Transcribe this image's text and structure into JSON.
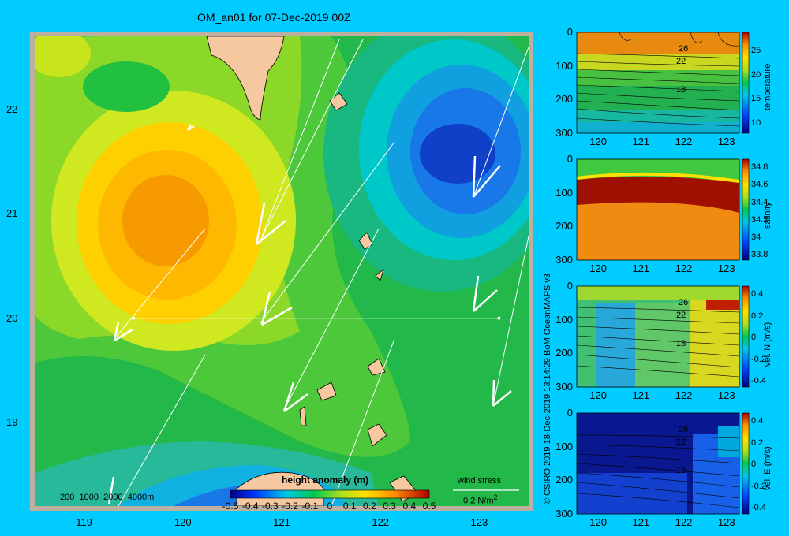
{
  "chart_data": [
    {
      "type": "heatmap",
      "title": "OM_an01 for 07-Dec-2019 00Z",
      "xlim": [
        118.5,
        123.5
      ],
      "ylim": [
        18.2,
        22.7
      ],
      "x_ticks": [
        "119",
        "120",
        "121",
        "122",
        "123"
      ],
      "y_ticks": [
        "19",
        "20",
        "21",
        "22"
      ],
      "colorbar": {
        "label": "height anomaly  (m)",
        "ticks": [
          "-0.5",
          "-0.4",
          "-0.3",
          "-0.2",
          "-0.1",
          "0",
          "0.1",
          "0.2",
          "0.3",
          "0.4",
          "0.5"
        ],
        "range": [
          -0.5,
          0.5
        ]
      },
      "highs": [
        {
          "x": 119.9,
          "y": 21.0,
          "value": 0.35
        }
      ],
      "lows": [
        {
          "x": 122.6,
          "y": 21.6,
          "value": -0.45
        }
      ],
      "section_line": {
        "x": [
          119.5,
          123.2
        ],
        "y": [
          20.0,
          20.0
        ]
      },
      "bathymetry_labels": [
        "200",
        "1000",
        "2000",
        "4000m"
      ],
      "wind_stress_label": "wind stress",
      "wind_stress_scale": "0.2 N/m",
      "wind_stress_exponent": "2"
    },
    {
      "type": "heatmap",
      "ylabel": "temperature",
      "x_ticks": [
        "120",
        "121",
        "122",
        "123"
      ],
      "y_ticks": [
        "0",
        "100",
        "200",
        "300"
      ],
      "colorbar_ticks": [
        "25",
        "20",
        "15",
        "10"
      ],
      "colorbar_range": [
        8,
        29
      ],
      "contour_labels": [
        "26",
        "22",
        "18"
      ]
    },
    {
      "type": "heatmap",
      "ylabel": "salinity",
      "x_ticks": [
        "120",
        "121",
        "122",
        "123"
      ],
      "y_ticks": [
        "0",
        "100",
        "200",
        "300"
      ],
      "colorbar_ticks": [
        "34.8",
        "34.6",
        "34.4",
        "34.2",
        "34",
        "33.8"
      ],
      "colorbar_range": [
        33.75,
        34.9
      ]
    },
    {
      "type": "heatmap",
      "ylabel": "vel. N  (m/s)",
      "x_ticks": [
        "120",
        "121",
        "122",
        "123"
      ],
      "y_ticks": [
        "0",
        "100",
        "200",
        "300"
      ],
      "colorbar_ticks": [
        "0.4",
        "0.2",
        "0",
        "-0.2",
        "-0.4"
      ],
      "colorbar_range": [
        -0.45,
        0.48
      ],
      "contour_labels": [
        "26",
        "22",
        "18"
      ]
    },
    {
      "type": "heatmap",
      "ylabel": "vel. E  (m/s)",
      "x_ticks": [
        "120",
        "121",
        "122",
        "123"
      ],
      "y_ticks": [
        "0",
        "100",
        "200",
        "300"
      ],
      "colorbar_ticks": [
        "0.4",
        "0.2",
        "0",
        "-0.2",
        "-0.4"
      ],
      "colorbar_range": [
        -0.45,
        0.48
      ],
      "contour_labels": [
        "26",
        "22",
        "18"
      ]
    }
  ],
  "credit": "© CSIRO 2019   18-Dec-2019 13:14:29 BoM OceanMAPS v3",
  "colors": {
    "background": "#00ccff",
    "land": "#f5c8a0",
    "frame": "#bdb0a0"
  }
}
